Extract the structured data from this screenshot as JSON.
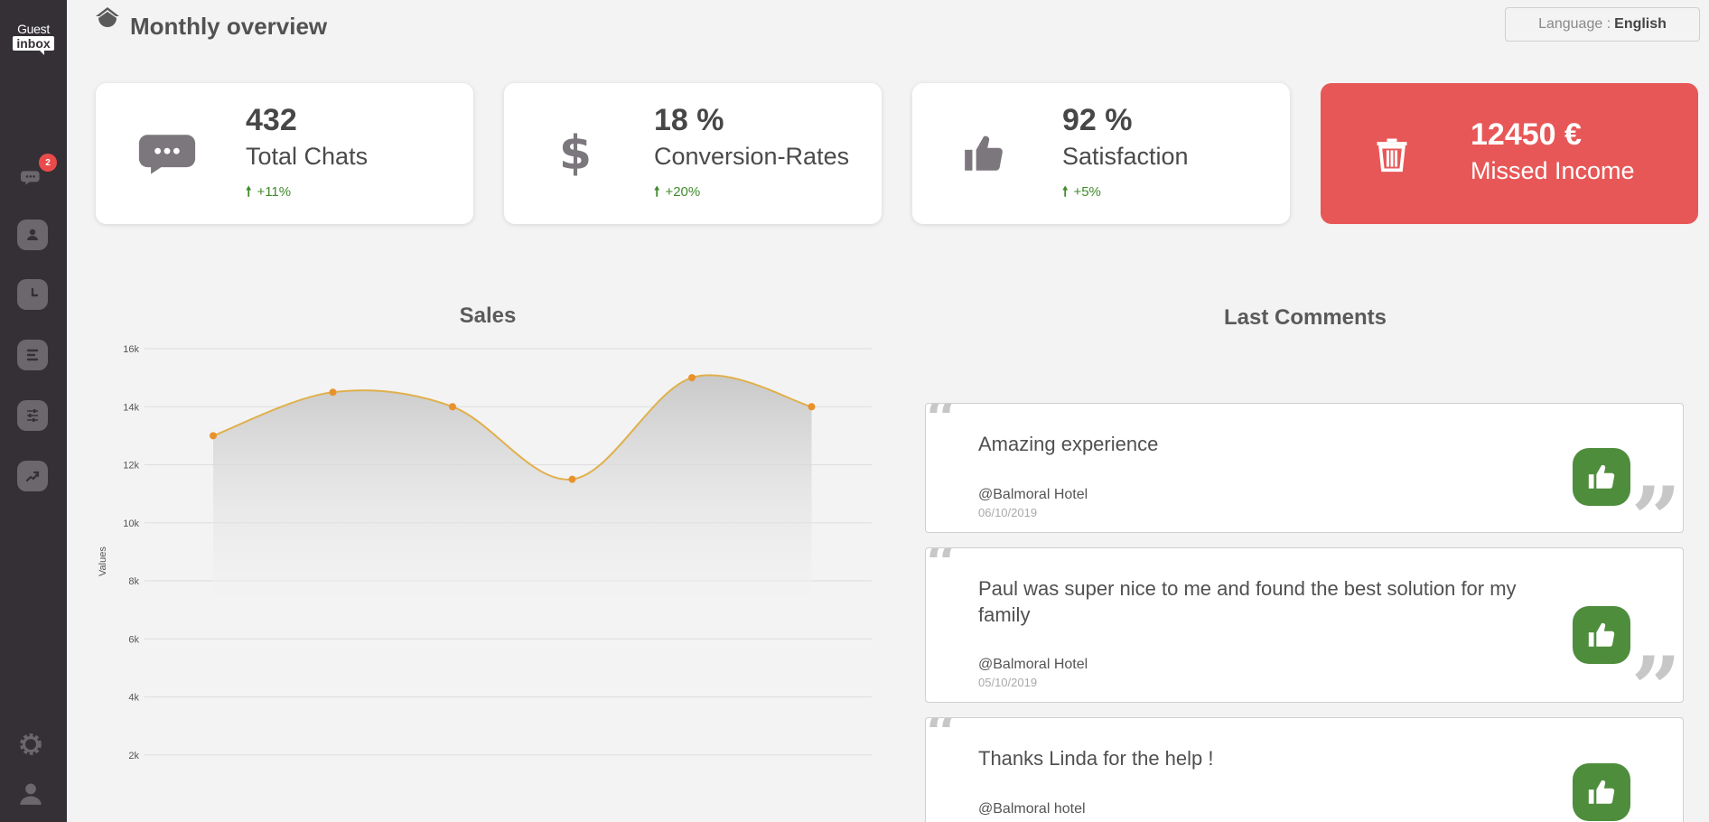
{
  "app": {
    "logo_top": "Guest",
    "logo_bottom": "inbox"
  },
  "sidebar": {
    "chat_badge": "2",
    "items": [
      {
        "icon": "chat-icon"
      },
      {
        "icon": "user-icon"
      },
      {
        "icon": "clock-icon"
      },
      {
        "icon": "list-icon"
      },
      {
        "icon": "sliders-icon"
      },
      {
        "icon": "trend-icon"
      }
    ],
    "bottom": [
      {
        "icon": "gear-icon"
      },
      {
        "icon": "account-icon"
      }
    ]
  },
  "header": {
    "title": "Monthly overview",
    "language_label": "Language :",
    "language_value": "English"
  },
  "stats": [
    {
      "value": "432",
      "label": "Total Chats",
      "change": "+11%",
      "icon": "chat-bubble-icon"
    },
    {
      "value": "18 %",
      "label": "Conversion-Rates",
      "change": "+20%",
      "icon": "dollar-icon"
    },
    {
      "value": "92 %",
      "label": "Satisfaction",
      "change": "+5%",
      "icon": "thumbs-up-icon"
    },
    {
      "value": "12450 €",
      "label": "Missed Income",
      "icon": "trash-icon"
    }
  ],
  "colors": {
    "sidebar": "#343036",
    "alert_card": "#e85757",
    "positive": "#3f8a2c",
    "like_button": "#4e8d3c",
    "chart_line": "#e0b04c",
    "chart_point": "#e8922e"
  },
  "sales": {
    "title": "Sales"
  },
  "chart_data": {
    "type": "area",
    "title": "Sales",
    "ylabel": "Values",
    "xlabel": "",
    "x": [
      1,
      2,
      3,
      4,
      5,
      6
    ],
    "values": [
      13000,
      14500,
      14000,
      11500,
      15000,
      14000
    ],
    "ylim": [
      0,
      16000
    ],
    "yticks": [
      "2k",
      "4k",
      "6k",
      "8k",
      "10k",
      "12k",
      "14k",
      "16k"
    ],
    "ytick_values": [
      2000,
      4000,
      6000,
      8000,
      10000,
      12000,
      14000,
      16000
    ],
    "grid": true
  },
  "comments": {
    "title": "Last Comments",
    "items": [
      {
        "text": "Amazing experience",
        "author": "@Balmoral Hotel",
        "date": "06/10/2019"
      },
      {
        "text": "Paul was super nice to me and found the best solution for my family",
        "author": "@Balmoral Hotel",
        "date": "05/10/2019"
      },
      {
        "text": "Thanks Linda for the help !",
        "author": "@Balmoral hotel",
        "date": ""
      }
    ]
  }
}
